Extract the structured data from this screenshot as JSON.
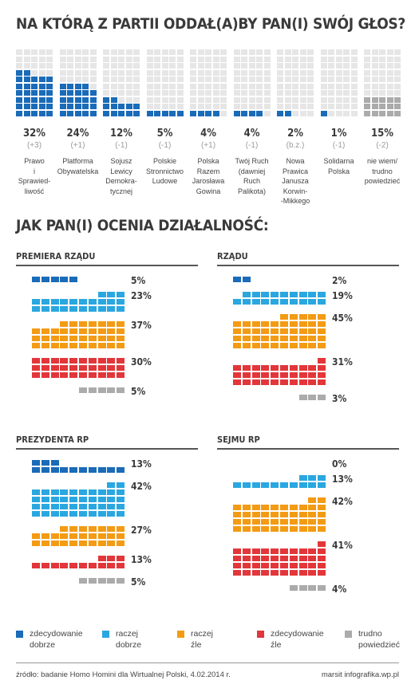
{
  "titles": {
    "main": "NA KTÓRĄ Z PARTII ODDAŁ(A)BY PAN(I) SWÓJ GŁOS?",
    "second": "JAK PAN(I) OCENIA DZIAŁALNOŚĆ:"
  },
  "colors": {
    "dark_blue": "#1a6bb8",
    "light_blue": "#2aa7e0",
    "orange": "#f39b14",
    "red": "#e2363a",
    "gray": "#ababab",
    "empty": "#e6e6e6"
  },
  "chart_data": [
    {
      "type": "bar",
      "title": "NA KTÓRĄ Z PARTII ODDAŁ(A)BY PAN(I) SWÓJ GŁOS?",
      "categories": [
        "Prawo i Sprawiedliwość",
        "Platforma Obywatelska",
        "Sojusz Lewicy Demokratycznej",
        "Polskie Stronnictwo Ludowe",
        "Polska Razem Jarosława Gowina",
        "Twój Ruch (dawniej Ruch Palikota)",
        "Nowa Prawica Janusza Korwin-Mikkego",
        "Solidarna Polska",
        "nie wiem/ trudno powiedzieć"
      ],
      "labels": [
        [
          "Prawo",
          "i",
          "Sprawied-",
          "liwość"
        ],
        [
          "Platforma",
          "Obywatelska"
        ],
        [
          "Sojusz",
          "Lewicy",
          "Demokra-",
          "tycznej"
        ],
        [
          "Polskie",
          "Stronnictwo",
          "Ludowe"
        ],
        [
          "Polska",
          "Razem",
          "Jarosława",
          "Gowina"
        ],
        [
          "Twój Ruch",
          "(dawniej",
          "Ruch",
          "Palikota)"
        ],
        [
          "Nowa",
          "Prawica",
          "Janusza",
          "Korwin-",
          "-Mikkego"
        ],
        [
          "Solidarna",
          "Polska"
        ],
        [
          "nie wiem/",
          "trudno",
          "powiedzieć"
        ]
      ],
      "values": [
        32,
        24,
        12,
        5,
        4,
        4,
        2,
        1,
        15
      ],
      "value_labels": [
        "32%",
        "24%",
        "12%",
        "5%",
        "4%",
        "4%",
        "2%",
        "1%",
        "15%"
      ],
      "changes": [
        "(+3)",
        "(+1)",
        "(-1)",
        "(-1)",
        "(+1)",
        "(-1)",
        "(b.z.)",
        "(-1)",
        "(-2)"
      ],
      "grid": {
        "cols": 5,
        "rows": 10,
        "max_cells": 50
      },
      "ylim": [
        0,
        50
      ]
    },
    {
      "type": "bar",
      "title": "PREMIERA RZĄDU",
      "categories": [
        "zdecydowanie dobrze",
        "raczej dobrze",
        "raczej źle",
        "zdecydowanie źle",
        "trudno powiedzieć"
      ],
      "values": [
        5,
        23,
        37,
        30,
        5
      ],
      "value_labels": [
        "5%",
        "23%",
        "37%",
        "30%",
        "5%"
      ]
    },
    {
      "type": "bar",
      "title": "RZĄDU",
      "categories": [
        "zdecydowanie dobrze",
        "raczej dobrze",
        "raczej źle",
        "zdecydowanie źle",
        "trudno powiedzieć"
      ],
      "values": [
        2,
        19,
        45,
        31,
        3
      ],
      "value_labels": [
        "2%",
        "19%",
        "45%",
        "31%",
        "3%"
      ]
    },
    {
      "type": "bar",
      "title": "PREZYDENTA RP",
      "categories": [
        "zdecydowanie dobrze",
        "raczej dobrze",
        "raczej źle",
        "zdecydowanie źle",
        "trudno powiedzieć"
      ],
      "values": [
        13,
        42,
        27,
        13,
        5
      ],
      "value_labels": [
        "13%",
        "42%",
        "27%",
        "13%",
        "5%"
      ]
    },
    {
      "type": "bar",
      "title": "SEJMU RP",
      "categories": [
        "zdecydowanie dobrze",
        "raczej dobrze",
        "raczej źle",
        "zdecydowanie źle",
        "trudno powiedzieć"
      ],
      "values": [
        0,
        13,
        42,
        41,
        4
      ],
      "value_labels": [
        "0%",
        "13%",
        "42%",
        "41%",
        "4%"
      ]
    }
  ],
  "legend": [
    {
      "line1": "zdecydowanie",
      "line2": "dobrze",
      "color": "#1a6bb8"
    },
    {
      "line1": "raczej",
      "line2": "dobrze",
      "color": "#2aa7e0"
    },
    {
      "line1": "raczej",
      "line2": "źle",
      "color": "#f39b14"
    },
    {
      "line1": "zdecydowanie",
      "line2": "źle",
      "color": "#e2363a"
    },
    {
      "line1": "trudno",
      "line2": "powiedzieć",
      "color": "#ababab"
    }
  ],
  "footer": {
    "source": "źródło: badanie Homo Homini dla Wirtualnej Polski, 4.02.2014 r.",
    "credit": "marsit infografika.wp.pl"
  }
}
